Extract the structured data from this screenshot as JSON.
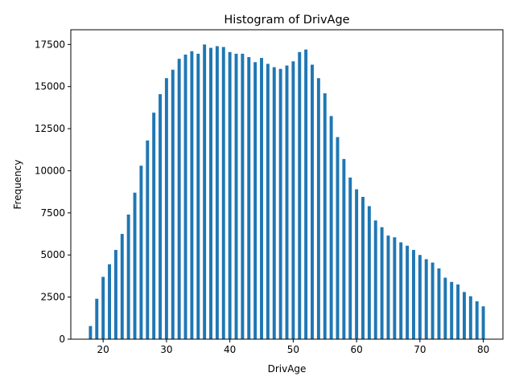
{
  "chart_data": {
    "type": "bar",
    "title": "Histogram of DrivAge",
    "xlabel": "DrivAge",
    "ylabel": "Frequency",
    "xlim": [
      14.9,
      83.1
    ],
    "ylim": [
      0,
      18375
    ],
    "x_ticks": [
      20,
      30,
      40,
      50,
      60,
      70,
      80
    ],
    "y_ticks": [
      0,
      2500,
      5000,
      7500,
      10000,
      12500,
      15000,
      17500
    ],
    "x_tick_labels": [
      "20",
      "30",
      "40",
      "50",
      "60",
      "70",
      "80"
    ],
    "y_tick_labels": [
      "0",
      "2500",
      "5000",
      "7500",
      "10000",
      "12500",
      "15000",
      "17500"
    ],
    "bar_color": "#1f77b4",
    "x": [
      18,
      19,
      20,
      21,
      22,
      23,
      24,
      25,
      26,
      27,
      28,
      29,
      30,
      31,
      32,
      33,
      34,
      35,
      36,
      37,
      38,
      39,
      40,
      41,
      42,
      43,
      44,
      45,
      46,
      47,
      48,
      49,
      50,
      51,
      52,
      53,
      54,
      55,
      56,
      57,
      58,
      59,
      60,
      61,
      62,
      63,
      64,
      65,
      66,
      67,
      68,
      69,
      70,
      71,
      72,
      73,
      74,
      75,
      76,
      77,
      78,
      79,
      80
    ],
    "values": [
      780,
      2400,
      3700,
      4450,
      5300,
      6250,
      7400,
      8700,
      10300,
      11800,
      13450,
      14550,
      15500,
      16000,
      16650,
      16900,
      17100,
      16950,
      17500,
      17300,
      17400,
      17350,
      17050,
      16950,
      16950,
      16750,
      16450,
      16700,
      16350,
      16150,
      16050,
      16250,
      16500,
      17050,
      17200,
      16300,
      15500,
      14600,
      13250,
      12000,
      10700,
      9600,
      8900,
      8450,
      7900,
      7050,
      6650,
      6150,
      6050,
      5750,
      5550,
      5300,
      5000,
      4750,
      4550,
      4200,
      3650,
      3400,
      3250,
      2800,
      2550,
      2250,
      1950
    ]
  }
}
